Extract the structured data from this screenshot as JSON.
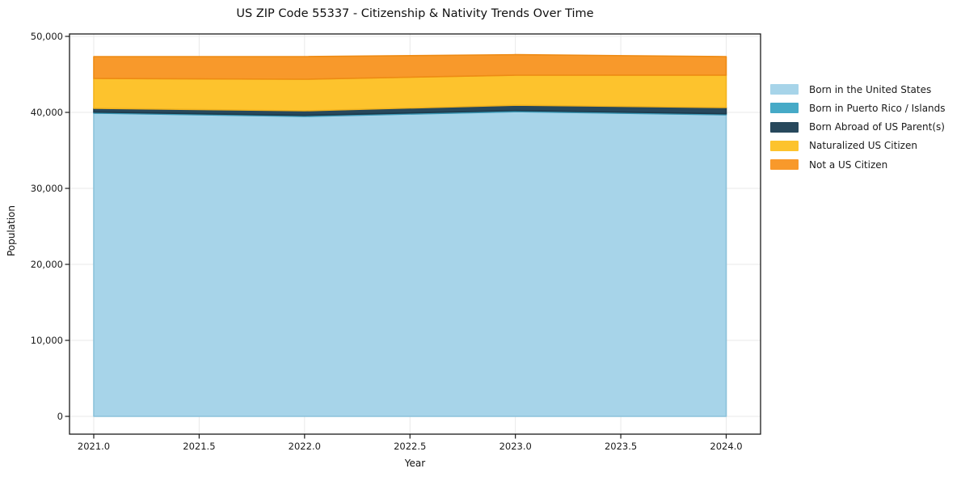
{
  "chart_data": {
    "type": "area",
    "stacked": true,
    "title": "US ZIP Code 55337 - Citizenship & Nativity Trends Over Time",
    "xlabel": "Year",
    "ylabel": "Population",
    "x": [
      2021,
      2022,
      2023,
      2024
    ],
    "series": [
      {
        "name": "Born in the United States",
        "values": [
          39900,
          39470,
          40100,
          39680
        ],
        "fill": "#a7d4e9",
        "stroke": "#8cc2da"
      },
      {
        "name": "Born in Puerto Rico / Islands",
        "values": [
          130,
          140,
          150,
          140
        ],
        "fill": "#46aac7",
        "stroke": "#3795b3"
      },
      {
        "name": "Born Abroad of US Parent(s)",
        "values": [
          510,
          600,
          700,
          820
        ],
        "fill": "#27485c",
        "stroke": "#1d3a4b"
      },
      {
        "name": "Naturalized US Citizen",
        "values": [
          3930,
          4150,
          3940,
          4260
        ],
        "fill": "#fdc32d",
        "stroke": "#f2b31e"
      },
      {
        "name": "Not a US Citizen",
        "values": [
          2870,
          2980,
          2710,
          2440
        ],
        "fill": "#f8992b",
        "stroke": "#ee8b14"
      }
    ],
    "totals": [
      47340,
      47340,
      47600,
      47340
    ],
    "xticks": [
      2021.0,
      2021.5,
      2022.0,
      2022.5,
      2023.0,
      2023.5,
      2024.0
    ],
    "xtick_labels": [
      "2021.0",
      "2021.5",
      "2022.0",
      "2022.5",
      "2023.0",
      "2023.5",
      "2024.0"
    ],
    "yticks": [
      0,
      10000,
      20000,
      30000,
      40000,
      50000
    ],
    "ytick_labels": [
      "0",
      "10,000",
      "20,000",
      "30,000",
      "40,000",
      "50,000"
    ],
    "xlim": [
      2020.885,
      2024.163
    ],
    "ylim": [
      -2340,
      50320
    ],
    "grid": true,
    "grid_color": "#e9e9e9",
    "spine_color": "#1a1a1a",
    "legend_position": "right-outside"
  }
}
